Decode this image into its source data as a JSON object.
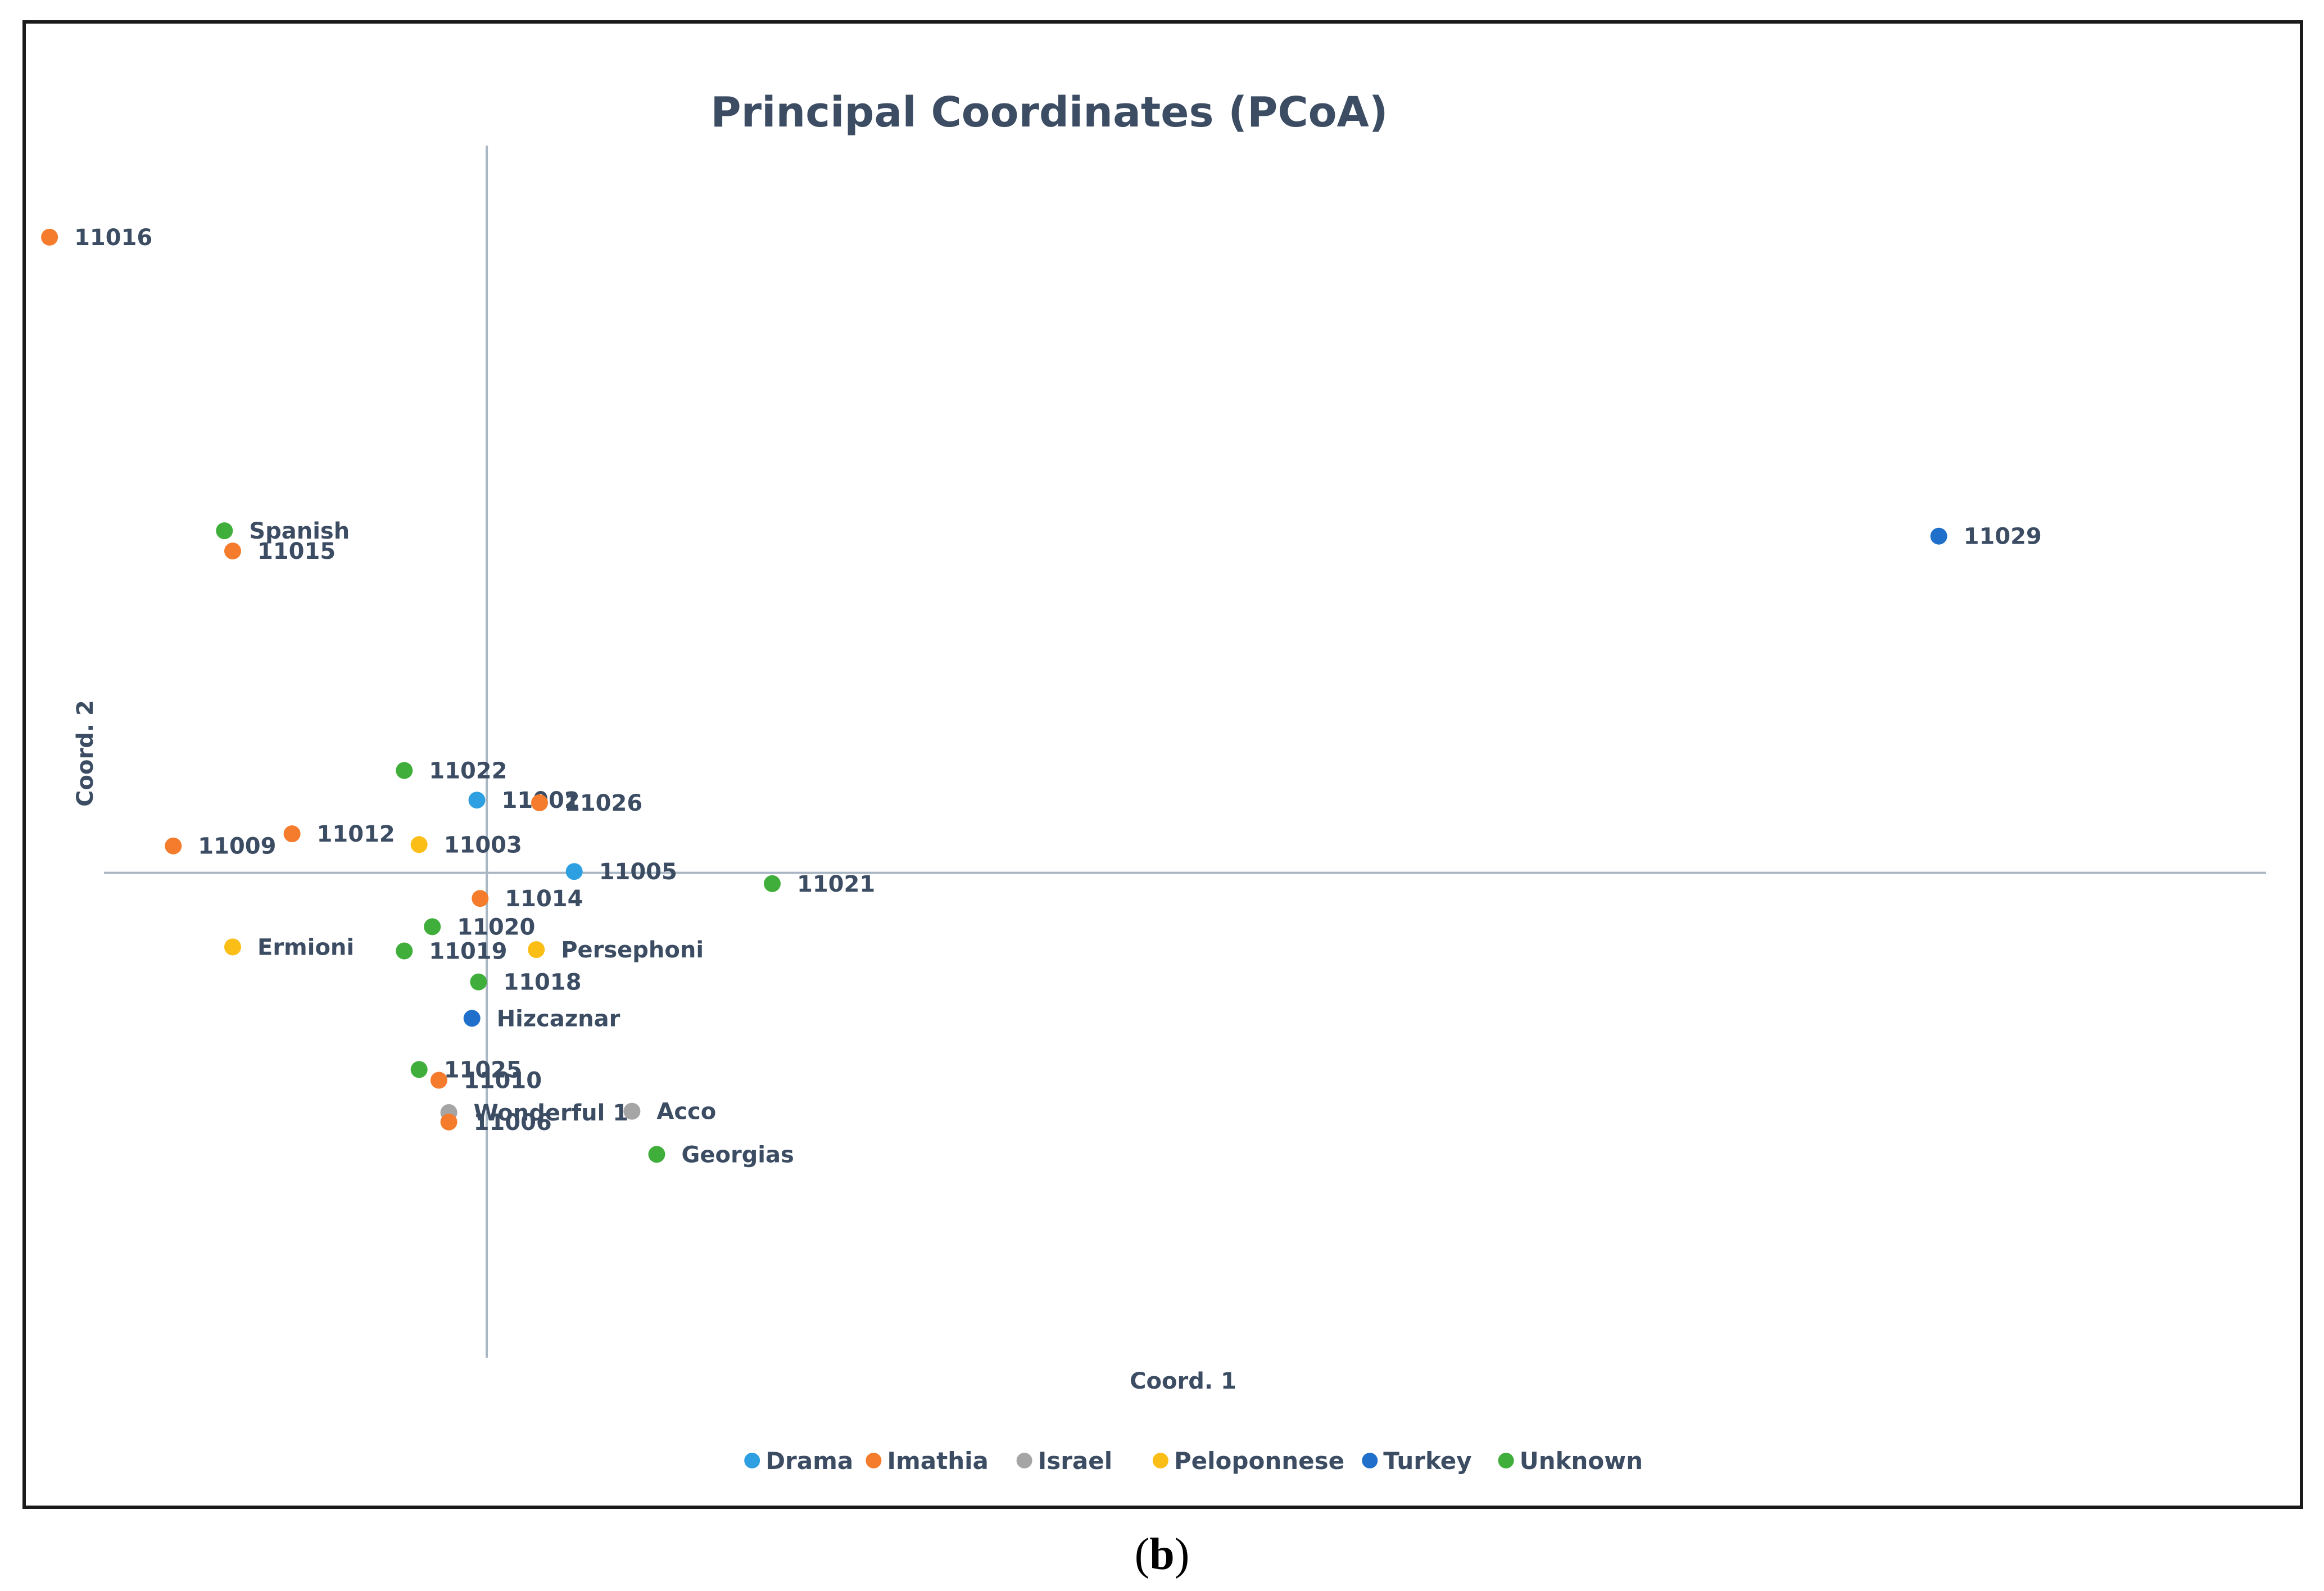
{
  "caption": {
    "open": "(",
    "letter": "b",
    "close": ")"
  },
  "chart_data": {
    "type": "scatter",
    "title": "Principal Coordinates (PCoA)",
    "xlabel": "Coord. 1",
    "ylabel": "Coord. 2",
    "xlim": [
      -0.295,
      1.03
    ],
    "ylim": [
      -0.36,
      0.54
    ],
    "grid": false,
    "legend_position": "bottom",
    "colors": {
      "Drama": "#2e9fe0",
      "Imathia": "#f47c2c",
      "Israel": "#a5a5a5",
      "Peloponnese": "#fbbe16",
      "Turkey": "#1f6fcb",
      "Unknown": "#3fae3a"
    },
    "legend": [
      "Drama",
      "Imathia",
      "Israel",
      "Peloponnese",
      "Turkey",
      "Unknown"
    ],
    "points": [
      {
        "label": "11016",
        "group": "Imathia",
        "x": -0.265,
        "y": 0.472
      },
      {
        "label": "Spanish",
        "group": "Unknown",
        "x": -0.159,
        "y": 0.254
      },
      {
        "label": "11015",
        "group": "Imathia",
        "x": -0.154,
        "y": 0.239
      },
      {
        "label": "11029",
        "group": "Turkey",
        "x": 0.88,
        "y": 0.25
      },
      {
        "label": "11022",
        "group": "Unknown",
        "x": -0.05,
        "y": 0.076
      },
      {
        "label": "11002",
        "group": "Drama",
        "x": -0.006,
        "y": 0.054
      },
      {
        "label": "11026",
        "group": "Imathia",
        "x": 0.032,
        "y": 0.052
      },
      {
        "label": "11012",
        "group": "Imathia",
        "x": -0.118,
        "y": 0.029
      },
      {
        "label": "11009",
        "group": "Imathia",
        "x": -0.19,
        "y": 0.02
      },
      {
        "label": "11003",
        "group": "Peloponnese",
        "x": -0.041,
        "y": 0.021
      },
      {
        "label": "11005",
        "group": "Drama",
        "x": 0.053,
        "y": 0.001
      },
      {
        "label": "11021",
        "group": "Unknown",
        "x": 0.173,
        "y": -0.008
      },
      {
        "label": "11014",
        "group": "Imathia",
        "x": -0.004,
        "y": -0.019
      },
      {
        "label": "11020",
        "group": "Unknown",
        "x": -0.033,
        "y": -0.04
      },
      {
        "label": "Ermioni",
        "group": "Peloponnese",
        "x": -0.154,
        "y": -0.055
      },
      {
        "label": "11019",
        "group": "Unknown",
        "x": -0.05,
        "y": -0.058
      },
      {
        "label": "Persephoni",
        "group": "Peloponnese",
        "x": 0.03,
        "y": -0.057
      },
      {
        "label": "11018",
        "group": "Unknown",
        "x": -0.005,
        "y": -0.081
      },
      {
        "label": "Hizcaznar",
        "group": "Turkey",
        "x": -0.009,
        "y": -0.108
      },
      {
        "label": "11025",
        "group": "Unknown",
        "x": -0.041,
        "y": -0.146
      },
      {
        "label": "11010",
        "group": "Imathia",
        "x": -0.029,
        "y": -0.154
      },
      {
        "label": "Wonderful 1",
        "group": "Israel",
        "x": -0.023,
        "y": -0.178
      },
      {
        "label": "Acco",
        "group": "Israel",
        "x": 0.088,
        "y": -0.177
      },
      {
        "label": "11006",
        "group": "Imathia",
        "x": -0.023,
        "y": -0.185
      },
      {
        "label": "Georgias",
        "group": "Unknown",
        "x": 0.103,
        "y": -0.209
      }
    ]
  }
}
